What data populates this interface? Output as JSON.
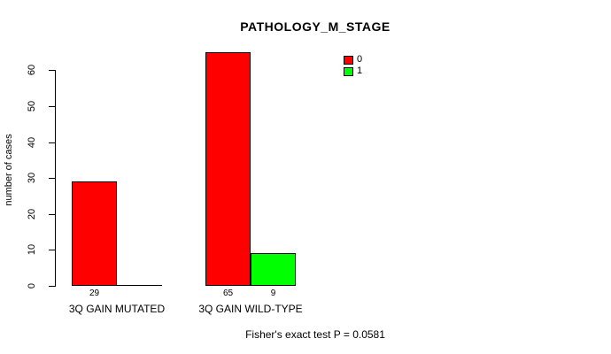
{
  "chart_data": {
    "type": "bar",
    "title": "PATHOLOGY_M_STAGE",
    "ylabel": "number of cases",
    "xlabel": "",
    "categories": [
      "3Q GAIN MUTATED",
      "3Q GAIN WILD-TYPE"
    ],
    "series": [
      {
        "name": "0",
        "color": "#ff0000",
        "values": [
          29,
          65
        ]
      },
      {
        "name": "1",
        "color": "#00ff00",
        "values": [
          0,
          9
        ]
      }
    ],
    "yticks": [
      0,
      10,
      20,
      30,
      40,
      50,
      60
    ],
    "ylim": [
      0,
      65
    ],
    "grid": false,
    "legend_position": "top-right",
    "bar_borders": "#000000",
    "annotation": "Fisher's exact test P = 0.0581"
  }
}
